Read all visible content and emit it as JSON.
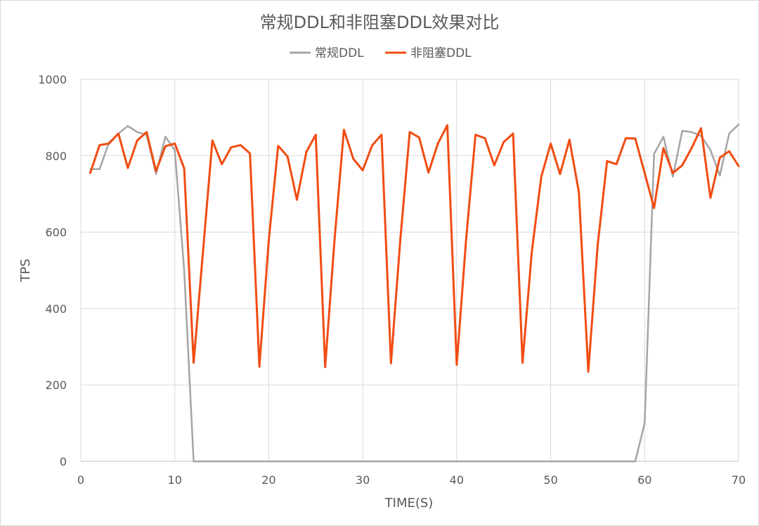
{
  "chart_data": {
    "type": "line",
    "title": "常规DDL和非阻塞DDL效果对比",
    "xlabel": "TIME(S)",
    "ylabel": "TPS",
    "xlim": [
      0,
      70
    ],
    "ylim": [
      0,
      1000
    ],
    "xticks": [
      "0",
      "10",
      "20",
      "30",
      "40",
      "50",
      "60",
      "70"
    ],
    "yticks": [
      "0",
      "200",
      "400",
      "600",
      "800",
      "1000"
    ],
    "grid": true,
    "legend_position": "top",
    "series": [
      {
        "name": "常规DDL",
        "color": "#a5a5a5",
        "x": [
          1,
          2,
          3,
          4,
          5,
          6,
          7,
          8,
          9,
          10,
          11,
          12,
          13,
          20,
          30,
          40,
          50,
          59,
          60,
          61,
          62,
          63,
          64,
          65,
          66,
          67,
          68,
          69,
          70
        ],
        "y": [
          765,
          765,
          835,
          858,
          878,
          862,
          855,
          752,
          850,
          815,
          500,
          0,
          0,
          0,
          0,
          0,
          0,
          0,
          100,
          805,
          850,
          745,
          865,
          862,
          852,
          815,
          748,
          858,
          882
        ]
      },
      {
        "name": "非阻塞DDL",
        "color": "#f14c12",
        "x": [
          1,
          2,
          3,
          4,
          5,
          6,
          7,
          8,
          9,
          10,
          11,
          12,
          13,
          14,
          15,
          16,
          17,
          18,
          19,
          20,
          21,
          22,
          23,
          24,
          25,
          26,
          27,
          28,
          29,
          30,
          31,
          32,
          33,
          34,
          35,
          36,
          37,
          38,
          39,
          40,
          41,
          42,
          43,
          44,
          45,
          46,
          47,
          48,
          49,
          50,
          51,
          52,
          53,
          54,
          55,
          56,
          57,
          58,
          59,
          60,
          61,
          62,
          63,
          64,
          65,
          66,
          67,
          68,
          69,
          70
        ],
        "y": [
          755,
          828,
          832,
          858,
          768,
          840,
          862,
          760,
          825,
          832,
          767,
          258,
          548,
          840,
          778,
          822,
          828,
          806,
          248,
          578,
          826,
          798,
          685,
          810,
          855,
          247,
          580,
          868,
          792,
          762,
          827,
          855,
          257,
          580,
          862,
          848,
          756,
          832,
          880,
          253,
          580,
          855,
          846,
          775,
          836,
          858,
          258,
          550,
          745,
          832,
          752,
          842,
          705,
          235,
          565,
          786,
          778,
          846,
          845,
          755,
          663,
          820,
          755,
          775,
          820,
          872,
          690,
          795,
          812,
          773
        ]
      }
    ]
  }
}
